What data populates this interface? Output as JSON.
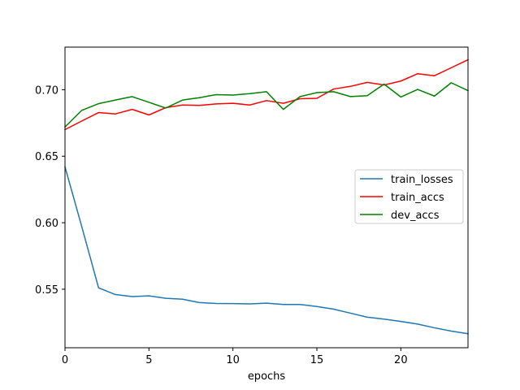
{
  "chart_data": {
    "type": "line",
    "title": "",
    "xlabel": "epochs",
    "ylabel": "",
    "xlim": [
      0,
      24
    ],
    "ylim": [
      0.506,
      0.732
    ],
    "xticks": [
      0,
      5,
      10,
      15,
      20
    ],
    "yticks": [
      0.55,
      0.6,
      0.65,
      0.7
    ],
    "grid": false,
    "legend_position": "center-right",
    "x": [
      0,
      1,
      2,
      3,
      4,
      5,
      6,
      7,
      8,
      9,
      10,
      11,
      12,
      13,
      14,
      15,
      16,
      17,
      18,
      19,
      20,
      21,
      22,
      23,
      24
    ],
    "series": [
      {
        "name": "train_losses",
        "color": "#1f77b4",
        "values": [
          0.642,
          0.597,
          0.551,
          0.546,
          0.5445,
          0.545,
          0.5432,
          0.5425,
          0.54,
          0.5393,
          0.5392,
          0.539,
          0.5395,
          0.5385,
          0.5385,
          0.537,
          0.535,
          0.532,
          0.529,
          0.5275,
          0.5258,
          0.5238,
          0.521,
          0.5185,
          0.5165
        ]
      },
      {
        "name": "train_accs",
        "color": "#ff0000",
        "values": [
          0.67,
          0.6765,
          0.6828,
          0.6818,
          0.6852,
          0.681,
          0.6865,
          0.6885,
          0.6882,
          0.6893,
          0.6898,
          0.6885,
          0.6918,
          0.6898,
          0.6932,
          0.6935,
          0.7005,
          0.7025,
          0.7055,
          0.7035,
          0.7065,
          0.712,
          0.7105,
          0.7165,
          0.7225
        ]
      },
      {
        "name": "dev_accs",
        "color": "#008000",
        "values": [
          0.672,
          0.6845,
          0.6895,
          0.6922,
          0.6948,
          0.6905,
          0.6862,
          0.6922,
          0.694,
          0.6963,
          0.696,
          0.697,
          0.6985,
          0.6852,
          0.6948,
          0.6978,
          0.6985,
          0.6948,
          0.6955,
          0.7042,
          0.6945,
          0.7002,
          0.6952,
          0.7052,
          0.6993
        ]
      }
    ]
  }
}
